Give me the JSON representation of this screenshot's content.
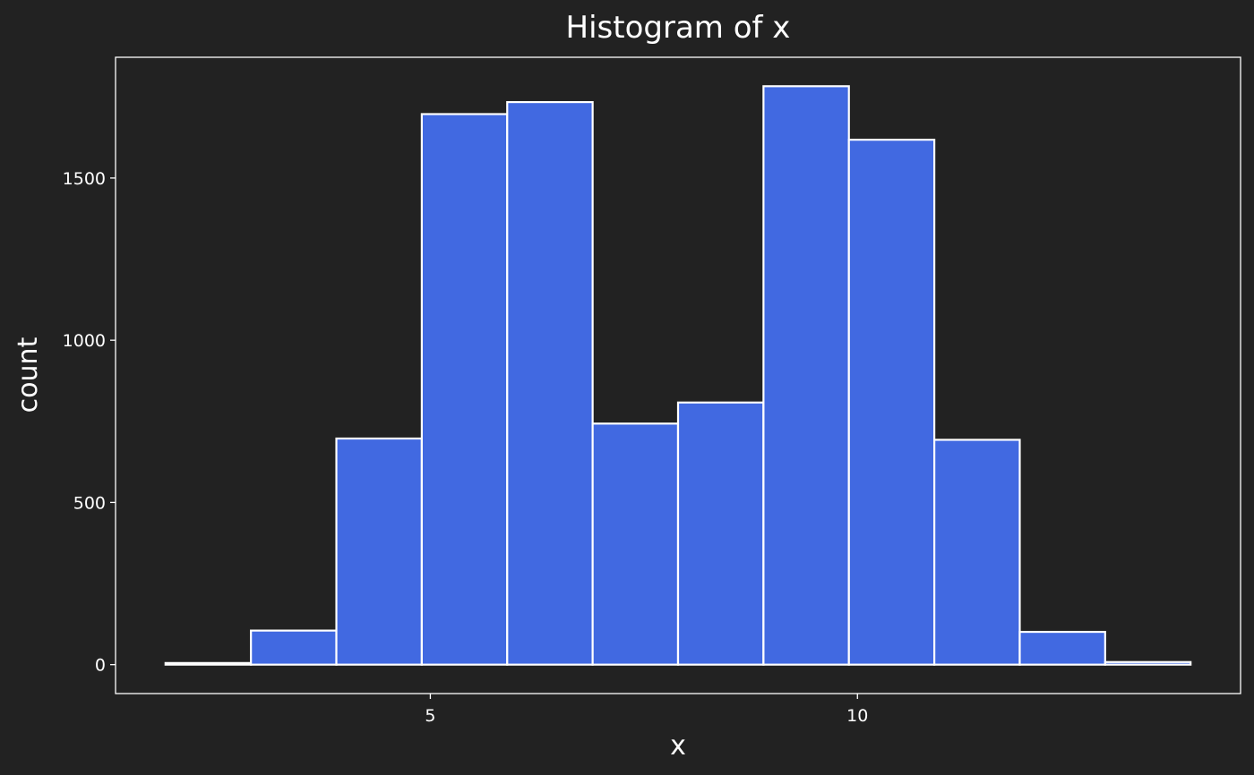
{
  "colors": {
    "background": "#222222",
    "bar_fill": "#4169E1",
    "bar_stroke": "#FFFFFF",
    "axis": "#FFFFFF",
    "text": "#FFFFFF"
  },
  "chart_data": {
    "type": "bar",
    "title": "Histogram of x",
    "xlabel": "x",
    "ylabel": "count",
    "bins": [
      {
        "x0": 1.9,
        "x1": 2.9,
        "count": 5
      },
      {
        "x0": 2.9,
        "x1": 3.9,
        "count": 105
      },
      {
        "x0": 3.9,
        "x1": 4.9,
        "count": 697
      },
      {
        "x0": 4.9,
        "x1": 5.9,
        "count": 1697
      },
      {
        "x0": 5.9,
        "x1": 6.9,
        "count": 1734
      },
      {
        "x0": 6.9,
        "x1": 7.9,
        "count": 743
      },
      {
        "x0": 7.9,
        "x1": 8.9,
        "count": 808
      },
      {
        "x0": 8.9,
        "x1": 9.9,
        "count": 1783
      },
      {
        "x0": 9.9,
        "x1": 10.9,
        "count": 1618
      },
      {
        "x0": 10.9,
        "x1": 11.9,
        "count": 693
      },
      {
        "x0": 11.9,
        "x1": 12.9,
        "count": 101
      },
      {
        "x0": 12.9,
        "x1": 13.9,
        "count": 8
      }
    ],
    "xlim": [
      1.315,
      14.485
    ],
    "ylim": [
      -89.15,
      1872.15
    ],
    "xticks": [
      5,
      10
    ],
    "xtick_labels": [
      "5",
      "10"
    ],
    "yticks": [
      0,
      500,
      1000,
      1500
    ],
    "ytick_labels": [
      "0",
      "500",
      "1000",
      "1500"
    ],
    "grid": false,
    "legend": "none"
  }
}
